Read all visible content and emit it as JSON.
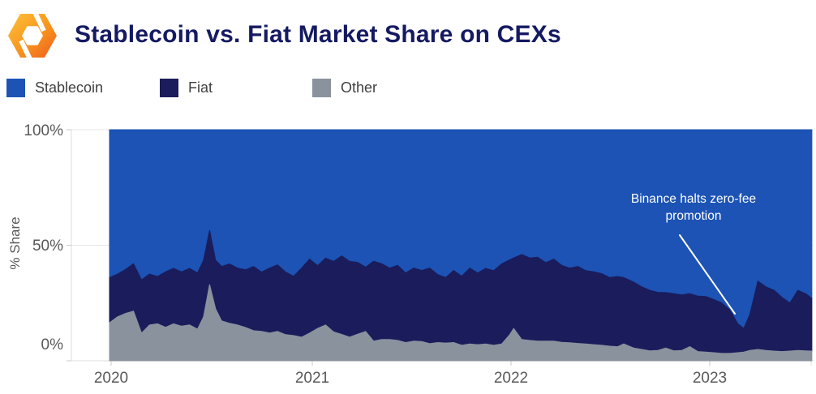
{
  "header": {
    "title": "Stablecoin vs. Fiat Market Share on CEXs"
  },
  "logo": {
    "brand": "Kaiko",
    "gradient_from": "#FDC23A",
    "gradient_mid": "#F7941E",
    "gradient_to": "#EF5A1E"
  },
  "colors": {
    "stablecoin": "#1C53B4",
    "fiat": "#1B1C5B",
    "other": "#8A929E",
    "title_text": "#151a62",
    "axis_text": "#595959",
    "grid_line": "#e7e7e7",
    "annotation_text": "#ffffff"
  },
  "chart_data": {
    "type": "area",
    "stacked": true,
    "units": "percent",
    "title": "Stablecoin vs. Fiat Market Share on CEXs",
    "xlabel": "",
    "ylabel": "% Share",
    "ylim": [
      0,
      100
    ],
    "xlim": [
      2020.0,
      2023.51
    ],
    "grid": "horizontal-light",
    "legend_position": "top-left",
    "yticks": [
      {
        "value": 100,
        "label": "100%"
      },
      {
        "value": 50,
        "label": "50%"
      },
      {
        "value": 0,
        "label": "0%"
      }
    ],
    "xticks": [
      {
        "value": 2020,
        "label": "2020"
      },
      {
        "value": 2021,
        "label": "2021"
      },
      {
        "value": 2022,
        "label": "2022"
      },
      {
        "value": 2023,
        "label": "2023"
      }
    ],
    "annotation": {
      "line1": "Binance halts zero-fee",
      "line2": "promotion",
      "points_to_x": 2023.15,
      "points_to_y": 15
    },
    "stack_order_bottom_to_top": [
      "Other",
      "Fiat",
      "Stablecoin"
    ],
    "x": [
      2020.0,
      2020.04,
      2020.08,
      2020.12,
      2020.16,
      2020.2,
      2020.24,
      2020.28,
      2020.32,
      2020.36,
      2020.4,
      2020.44,
      2020.47,
      2020.5,
      2020.53,
      2020.56,
      2020.6,
      2020.64,
      2020.68,
      2020.72,
      2020.76,
      2020.8,
      2020.84,
      2020.88,
      2020.92,
      2020.96,
      2021.0,
      2021.04,
      2021.08,
      2021.12,
      2021.16,
      2021.2,
      2021.24,
      2021.28,
      2021.32,
      2021.36,
      2021.4,
      2021.44,
      2021.48,
      2021.52,
      2021.56,
      2021.6,
      2021.64,
      2021.68,
      2021.72,
      2021.76,
      2021.8,
      2021.84,
      2021.88,
      2021.92,
      2021.96,
      2022.0,
      2022.02,
      2022.06,
      2022.1,
      2022.14,
      2022.18,
      2022.22,
      2022.26,
      2022.3,
      2022.34,
      2022.38,
      2022.42,
      2022.46,
      2022.5,
      2022.54,
      2022.57,
      2022.62,
      2022.66,
      2022.7,
      2022.74,
      2022.78,
      2022.82,
      2022.86,
      2022.9,
      2022.94,
      2022.98,
      2023.02,
      2023.06,
      2023.1,
      2023.14,
      2023.17,
      2023.2,
      2023.24,
      2023.28,
      2023.32,
      2023.36,
      2023.4,
      2023.44,
      2023.48,
      2023.51
    ],
    "series": [
      {
        "name": "Stablecoin",
        "color": "#1C53B4",
        "values": [
          64.0,
          62.5,
          60.5,
          58.0,
          65.0,
          62.5,
          63.5,
          61.5,
          60.0,
          61.5,
          60.0,
          62.0,
          56.5,
          43.5,
          56.5,
          59.2,
          58.1,
          59.9,
          60.6,
          59.2,
          61.6,
          59.9,
          58.5,
          61.6,
          63.4,
          59.9,
          56.0,
          58.8,
          55.6,
          57.0,
          54.6,
          57.0,
          57.4,
          59.5,
          56.9,
          58.0,
          59.9,
          58.7,
          62.0,
          59.9,
          60.9,
          59.9,
          62.7,
          64.0,
          60.9,
          63.4,
          59.9,
          62.0,
          60.0,
          61.0,
          58.1,
          56.3,
          55.5,
          54.0,
          55.5,
          55.2,
          57.5,
          56.0,
          58.7,
          59.9,
          59.2,
          61.0,
          61.5,
          62.3,
          64.0,
          63.5,
          64.0,
          66.0,
          68.0,
          69.5,
          70.4,
          70.5,
          71.0,
          71.5,
          71.0,
          72.0,
          72.2,
          73.5,
          75.0,
          78.0,
          84.0,
          86.0,
          80.0,
          65.5,
          68.0,
          69.4,
          72.5,
          75.0,
          69.5,
          71.0,
          73.0
        ]
      },
      {
        "name": "Fiat",
        "color": "#1B1C5B",
        "values": [
          19.5,
          18.5,
          19.0,
          20.5,
          23.0,
          22.0,
          20.5,
          24.0,
          24.0,
          23.5,
          24.5,
          24.3,
          24.5,
          23.5,
          21.0,
          23.5,
          25.7,
          24.6,
          25.0,
          27.8,
          25.7,
          28.1,
          28.8,
          27.1,
          25.7,
          29.9,
          32.0,
          27.2,
          28.9,
          30.5,
          34.0,
          32.8,
          31.1,
          27.8,
          34.6,
          32.8,
          30.9,
          32.5,
          30.1,
          31.6,
          30.8,
          32.7,
          29.4,
          28.3,
          31.2,
          29.9,
          32.8,
          31.0,
          32.7,
          32.3,
          34.6,
          32.4,
          30.5,
          36.8,
          35.7,
          36.3,
          34.0,
          35.5,
          33.3,
          32.3,
          33.3,
          31.7,
          31.5,
          31.0,
          29.7,
          30.4,
          28.7,
          28.5,
          27.1,
          26.2,
          25.1,
          24.0,
          24.7,
          24.0,
          22.9,
          24.0,
          24.0,
          23.0,
          21.8,
          18.8,
          12.5,
          10.2,
          15.5,
          29.6,
          27.5,
          26.4,
          23.5,
          20.8,
          26.0,
          24.7,
          22.8
        ]
      },
      {
        "name": "Other",
        "color": "#8A929E",
        "values": [
          16.5,
          19.0,
          20.5,
          21.5,
          12.0,
          15.5,
          16.0,
          14.5,
          16.0,
          15.0,
          15.5,
          13.7,
          19.0,
          33.0,
          22.5,
          17.3,
          16.2,
          15.5,
          14.4,
          13.0,
          12.7,
          12.0,
          12.7,
          11.3,
          10.9,
          10.2,
          12.0,
          14.0,
          15.5,
          12.5,
          11.4,
          10.2,
          11.5,
          12.7,
          8.5,
          9.2,
          9.2,
          8.8,
          7.9,
          8.5,
          8.3,
          7.4,
          7.9,
          7.7,
          7.9,
          6.7,
          7.3,
          7.0,
          7.3,
          6.7,
          7.3,
          11.3,
          14.0,
          9.2,
          8.8,
          8.5,
          8.5,
          8.5,
          8.0,
          7.8,
          7.5,
          7.3,
          7.0,
          6.7,
          6.3,
          6.1,
          7.3,
          5.5,
          4.9,
          4.3,
          4.5,
          5.5,
          4.3,
          4.5,
          6.1,
          4.0,
          3.8,
          3.5,
          3.2,
          3.2,
          3.5,
          3.8,
          4.5,
          4.9,
          4.5,
          4.2,
          4.0,
          4.2,
          4.5,
          4.3,
          4.2
        ]
      }
    ]
  }
}
